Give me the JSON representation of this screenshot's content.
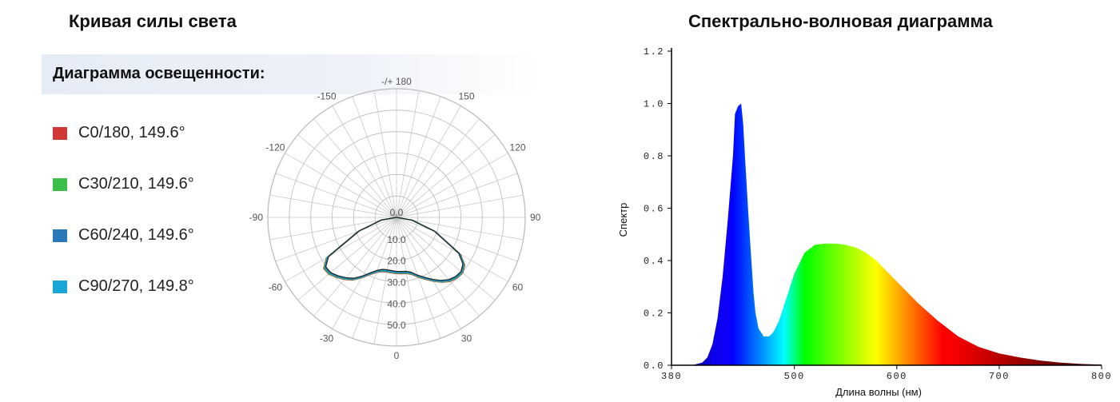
{
  "titles": {
    "left": "Кривая силы света",
    "right": "Спектрально-волновая диаграмма"
  },
  "diagram_header": "Диаграмма освещенности:",
  "legend": [
    {
      "label": "C0/180, 149.6°",
      "color": "#d03838"
    },
    {
      "label": "C30/210, 149.6°",
      "color": "#3cbf4a"
    },
    {
      "label": "C60/240, 149.6°",
      "color": "#2a78b8"
    },
    {
      "label": "C90/270, 149.8°",
      "color": "#19a6d6"
    }
  ],
  "chart_data": [
    {
      "type": "polar",
      "angle_labels": [
        {
          "deg": 180,
          "text": "-/+ 180"
        },
        {
          "deg": 150,
          "text": "150"
        },
        {
          "deg": -150,
          "text": "-150"
        },
        {
          "deg": 120,
          "text": "120"
        },
        {
          "deg": -120,
          "text": "-120"
        },
        {
          "deg": 90,
          "text": "90"
        },
        {
          "deg": -90,
          "text": "-90"
        },
        {
          "deg": 60,
          "text": "60"
        },
        {
          "deg": -60,
          "text": "-60"
        },
        {
          "deg": 30,
          "text": "30"
        },
        {
          "deg": -30,
          "text": "-30"
        },
        {
          "deg": 0,
          "text": "0"
        }
      ],
      "radial_labels": [
        "0.0",
        "10.0",
        "20.0",
        "30.0",
        "40.0",
        "50.0"
      ],
      "radial_max": 50,
      "series": [
        {
          "color": "#d03838",
          "angles": [
            -90,
            -80,
            -70,
            -60,
            -55,
            -50,
            -45,
            -40,
            -35,
            -30,
            -25,
            -20,
            -15,
            -10,
            -5,
            0,
            5,
            10,
            15,
            20,
            25,
            30,
            35,
            40,
            45,
            50,
            55,
            60,
            70,
            80,
            90
          ],
          "values": [
            0,
            6.2,
            16.0,
            31.5,
            34.6,
            34.4,
            33.0,
            31.5,
            29.8,
            27.2,
            24.6,
            22.8,
            21.8,
            21.6,
            21.7,
            21.9,
            22.0,
            22.2,
            23.0,
            24.8,
            26.6,
            28.7,
            30.8,
            32.5,
            33.4,
            33.6,
            32.4,
            28.8,
            16.2,
            6.4,
            0
          ]
        },
        {
          "color": "#3cbf4a",
          "angles": [
            -90,
            -80,
            -70,
            -60,
            -55,
            -50,
            -45,
            -40,
            -35,
            -30,
            -25,
            -20,
            -15,
            -10,
            -5,
            0,
            5,
            10,
            15,
            20,
            25,
            30,
            35,
            40,
            45,
            50,
            55,
            60,
            70,
            80,
            90
          ],
          "values": [
            0,
            6.1,
            15.8,
            31.3,
            34.4,
            34.2,
            32.8,
            31.3,
            29.6,
            27.0,
            24.4,
            22.6,
            21.6,
            21.4,
            21.5,
            21.7,
            21.8,
            22.0,
            22.8,
            24.6,
            26.4,
            28.5,
            30.6,
            32.3,
            33.2,
            33.4,
            32.2,
            28.6,
            16.0,
            6.3,
            0
          ]
        },
        {
          "color": "#2a78b8",
          "angles": [
            -90,
            -80,
            -70,
            -60,
            -55,
            -50,
            -45,
            -40,
            -35,
            -30,
            -25,
            -20,
            -15,
            -10,
            -5,
            0,
            5,
            10,
            15,
            20,
            25,
            30,
            35,
            40,
            45,
            50,
            55,
            60,
            70,
            80,
            90
          ],
          "values": [
            0,
            6.0,
            15.6,
            31.0,
            34.1,
            33.9,
            32.6,
            31.1,
            29.4,
            26.8,
            24.2,
            22.4,
            21.4,
            21.2,
            21.3,
            21.5,
            21.6,
            21.8,
            22.6,
            24.4,
            26.2,
            28.3,
            30.4,
            32.1,
            33.0,
            33.2,
            32.0,
            28.4,
            15.9,
            6.2,
            0
          ]
        },
        {
          "color": "#19a6d6",
          "angles": [
            -90,
            -80,
            -70,
            -60,
            -55,
            -50,
            -45,
            -40,
            -35,
            -30,
            -25,
            -20,
            -15,
            -10,
            -5,
            0,
            5,
            10,
            15,
            20,
            25,
            30,
            35,
            40,
            45,
            50,
            55,
            60,
            70,
            80,
            90
          ],
          "values": [
            0,
            5.9,
            15.5,
            30.8,
            33.9,
            33.7,
            32.4,
            30.9,
            29.2,
            26.6,
            24.0,
            22.2,
            21.2,
            21.0,
            21.1,
            21.3,
            21.4,
            21.6,
            22.4,
            24.2,
            26.0,
            28.1,
            30.2,
            31.9,
            32.8,
            33.0,
            31.8,
            28.2,
            15.8,
            6.1,
            0
          ]
        },
        {
          "color": "#222222",
          "angles": [
            -90,
            -80,
            -70,
            -60,
            -55,
            -50,
            -45,
            -40,
            -35,
            -30,
            -25,
            -20,
            -15,
            -10,
            -5,
            0,
            5,
            10,
            15,
            20,
            25,
            30,
            35,
            40,
            45,
            50,
            55,
            60,
            70,
            80,
            90
          ],
          "values": [
            0,
            5.8,
            15.3,
            30.5,
            33.6,
            33.4,
            32.1,
            30.6,
            28.9,
            26.3,
            23.7,
            21.9,
            20.9,
            20.7,
            20.8,
            21.0,
            21.1,
            21.3,
            22.1,
            23.9,
            25.7,
            27.8,
            29.9,
            31.6,
            32.5,
            32.7,
            31.5,
            27.9,
            15.6,
            6.0,
            0
          ]
        }
      ]
    },
    {
      "type": "area",
      "xlabel": "Длина волны (нм)",
      "ylabel": "Спектр",
      "xlim": [
        380,
        800
      ],
      "ylim": [
        0,
        1.2
      ],
      "xticks": [
        380,
        500,
        600,
        700,
        800
      ],
      "yticks": [
        "0.0",
        "0.2",
        "0.4",
        "0.6",
        "0.8",
        "1.0",
        "1.2"
      ],
      "x": [
        380,
        400,
        410,
        415,
        420,
        425,
        430,
        435,
        440,
        442,
        445,
        448,
        450,
        452,
        455,
        458,
        460,
        462,
        465,
        470,
        475,
        478,
        480,
        485,
        490,
        495,
        500,
        505,
        510,
        520,
        530,
        540,
        550,
        560,
        570,
        580,
        590,
        600,
        620,
        640,
        660,
        680,
        700,
        720,
        740,
        760,
        780,
        800
      ],
      "y": [
        0,
        0,
        0.01,
        0.03,
        0.08,
        0.18,
        0.34,
        0.56,
        0.8,
        0.96,
        0.99,
        1.0,
        0.92,
        0.78,
        0.58,
        0.4,
        0.28,
        0.2,
        0.14,
        0.11,
        0.11,
        0.12,
        0.13,
        0.17,
        0.23,
        0.29,
        0.35,
        0.39,
        0.43,
        0.46,
        0.465,
        0.465,
        0.46,
        0.45,
        0.43,
        0.4,
        0.36,
        0.32,
        0.24,
        0.17,
        0.11,
        0.07,
        0.045,
        0.03,
        0.018,
        0.01,
        0.005,
        0.002
      ]
    }
  ]
}
